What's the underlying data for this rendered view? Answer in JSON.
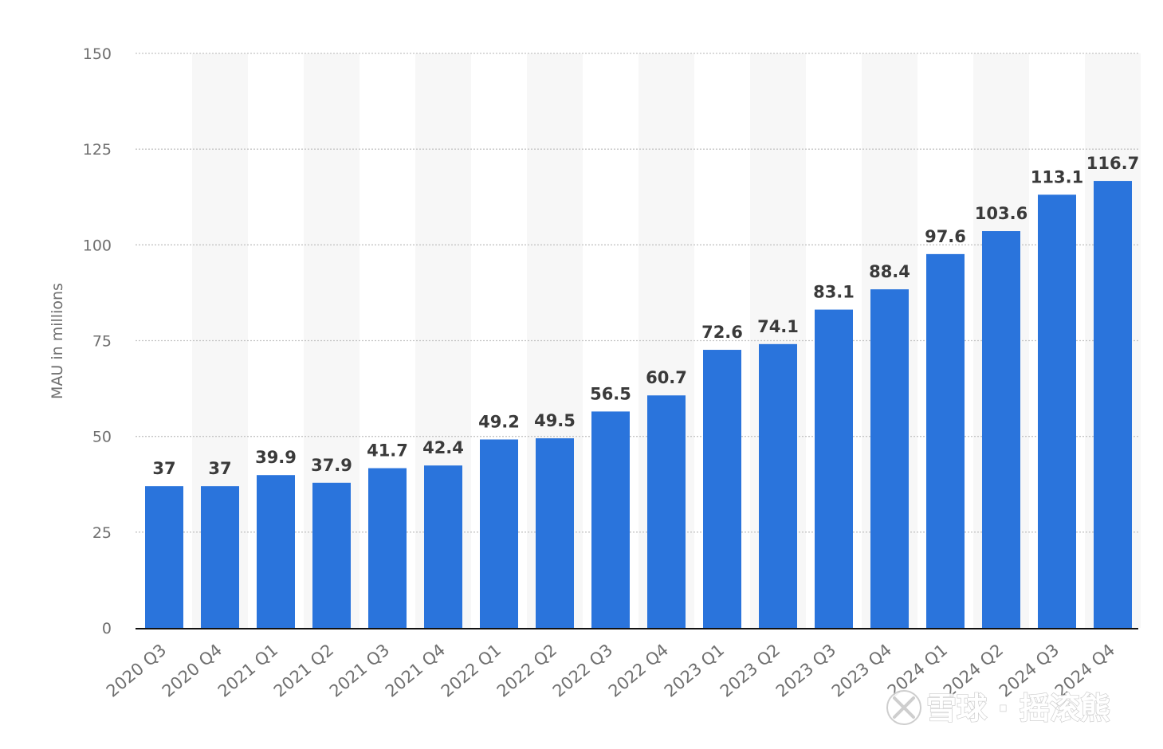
{
  "chart_data": {
    "type": "bar",
    "categories": [
      "2020 Q3",
      "2020 Q4",
      "2021 Q1",
      "2021 Q2",
      "2021 Q3",
      "2021 Q4",
      "2022 Q1",
      "2022 Q2",
      "2022 Q3",
      "2022 Q4",
      "2023 Q1",
      "2023 Q2",
      "2023 Q3",
      "2023 Q4",
      "2024 Q1",
      "2024 Q2",
      "2024 Q3",
      "2024 Q4"
    ],
    "values": [
      37,
      37,
      39.9,
      37.9,
      41.7,
      42.4,
      49.2,
      49.5,
      56.5,
      60.7,
      72.6,
      74.1,
      83.1,
      88.4,
      97.6,
      103.6,
      113.1,
      116.7
    ],
    "data_labels": [
      "37",
      "37",
      "39.9",
      "37.9",
      "41.7",
      "42.4",
      "49.2",
      "49.5",
      "56.5",
      "60.7",
      "72.6",
      "74.1",
      "83.1",
      "88.4",
      "97.6",
      "103.6",
      "113.1",
      "116.7"
    ],
    "ylabel": "MAU in millions",
    "xlabel": "",
    "ylim": [
      0,
      150
    ],
    "yticks": [
      0,
      25,
      50,
      75,
      100,
      125,
      150
    ],
    "ytick_labels": [
      "0",
      "25",
      "50",
      "75",
      "100",
      "125",
      "150"
    ],
    "grid": true,
    "bar_color": "#2a74dc",
    "alt_band_color": "#f7f7f7",
    "gridline_color": "#c4c4c4"
  },
  "watermark": {
    "text": "雪球 · 摇滚熊",
    "icon": "snowball-logo-icon"
  }
}
